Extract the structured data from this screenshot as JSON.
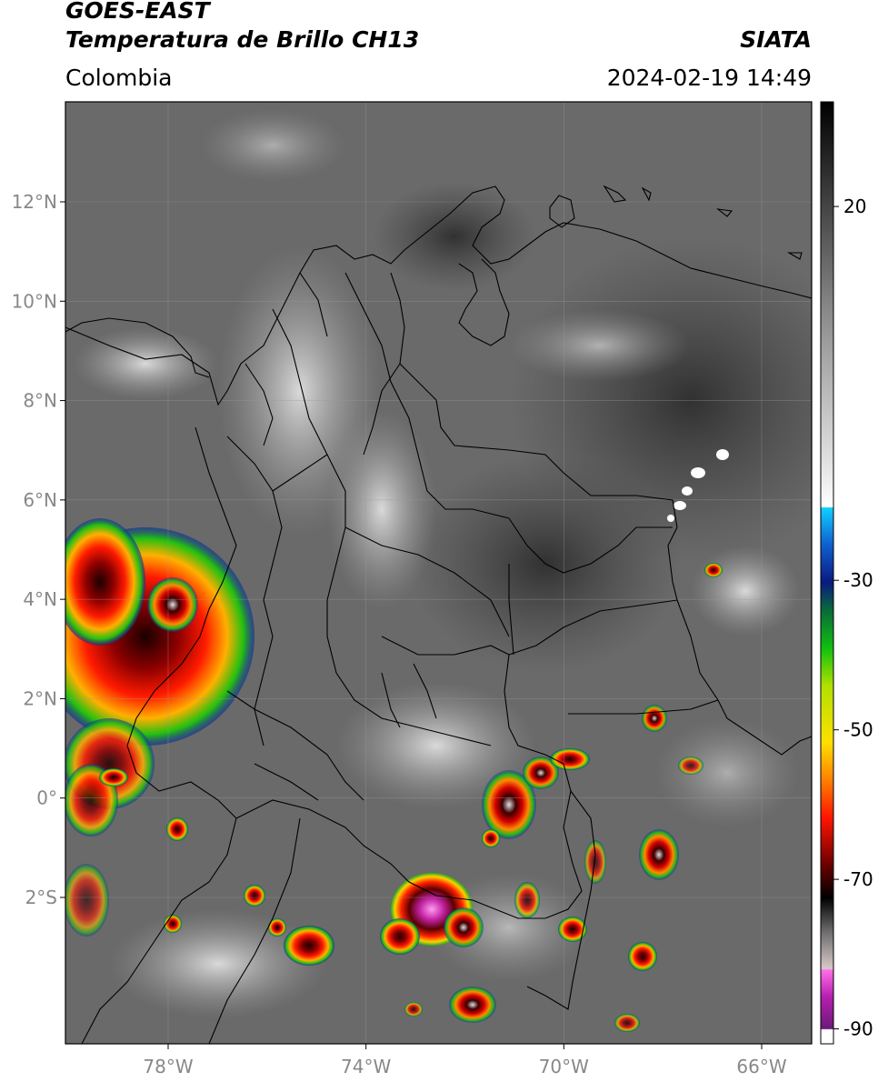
{
  "header": {
    "satellite": "GOES-EAST",
    "product": "Temperatura de Brillo CH13",
    "region": "Colombia",
    "agency": "SIATA",
    "datetime": "2024-02-19 14:49"
  },
  "map": {
    "lat_labels": [
      "12°N",
      "10°N",
      "8°N",
      "6°N",
      "4°N",
      "2°N",
      "0°",
      "2°S"
    ],
    "lat_values": [
      12,
      10,
      8,
      6,
      4,
      2,
      0,
      -2
    ],
    "lon_labels": [
      "78°W",
      "74°W",
      "70°W",
      "66°W"
    ],
    "lon_values": [
      -78,
      -74,
      -70,
      -66
    ],
    "extent": {
      "lon_min": -80.0,
      "lon_max": -65.0,
      "lat_min": -5.0,
      "lat_max": 14.0
    },
    "grid": true
  },
  "colorbar": {
    "labels": [
      "20",
      "-30",
      "-50",
      "-70",
      "-90"
    ],
    "values": [
      20,
      -30,
      -50,
      -70,
      -90
    ],
    "range": [
      -92,
      34
    ],
    "unit_hint": "°C"
  },
  "colors": {
    "background_gray": "#6e6e6e",
    "cloud_light": "#cfcfcf",
    "convective_red": "#e8130c",
    "convective_green": "#25c21c"
  }
}
